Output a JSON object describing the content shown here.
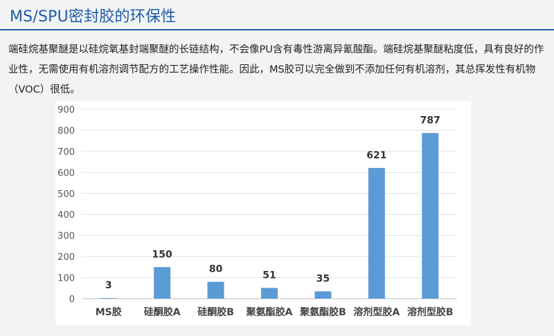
{
  "header": {
    "title": "MS/SPU密封胶的环保性"
  },
  "description": "端硅烷基聚醚是以硅烷氧基封端聚醚的长链结构，不会像PU含有毒性游离异氰酸酯。端硅烷基聚醚粘度低，具有良好的作业性，无需使用有机溶剂调节配方的工艺操作性能。因此，MS胶可以完全做到不添加任何有机溶剂，其总挥发性有机物（VOC）很低。",
  "chart_data": {
    "type": "bar",
    "categories": [
      "MS胶",
      "硅酮胶A",
      "硅酮胶B",
      "聚氨酯胶A",
      "聚氨酯胶B",
      "溶剂型胶A",
      "溶剂型胶B"
    ],
    "values": [
      3,
      150,
      80,
      51,
      35,
      621,
      787
    ],
    "data_labels": [
      "3",
      "150",
      "80",
      "51",
      "35",
      "621",
      "787"
    ],
    "yticks": [
      "0",
      "100",
      "200",
      "300",
      "400",
      "500",
      "600",
      "700",
      "800",
      "900"
    ],
    "ylim": [
      0,
      900
    ],
    "title": "",
    "xlabel": "",
    "ylabel": "",
    "grid": true,
    "legend": "none",
    "bar_color": "#5b9bd5"
  }
}
